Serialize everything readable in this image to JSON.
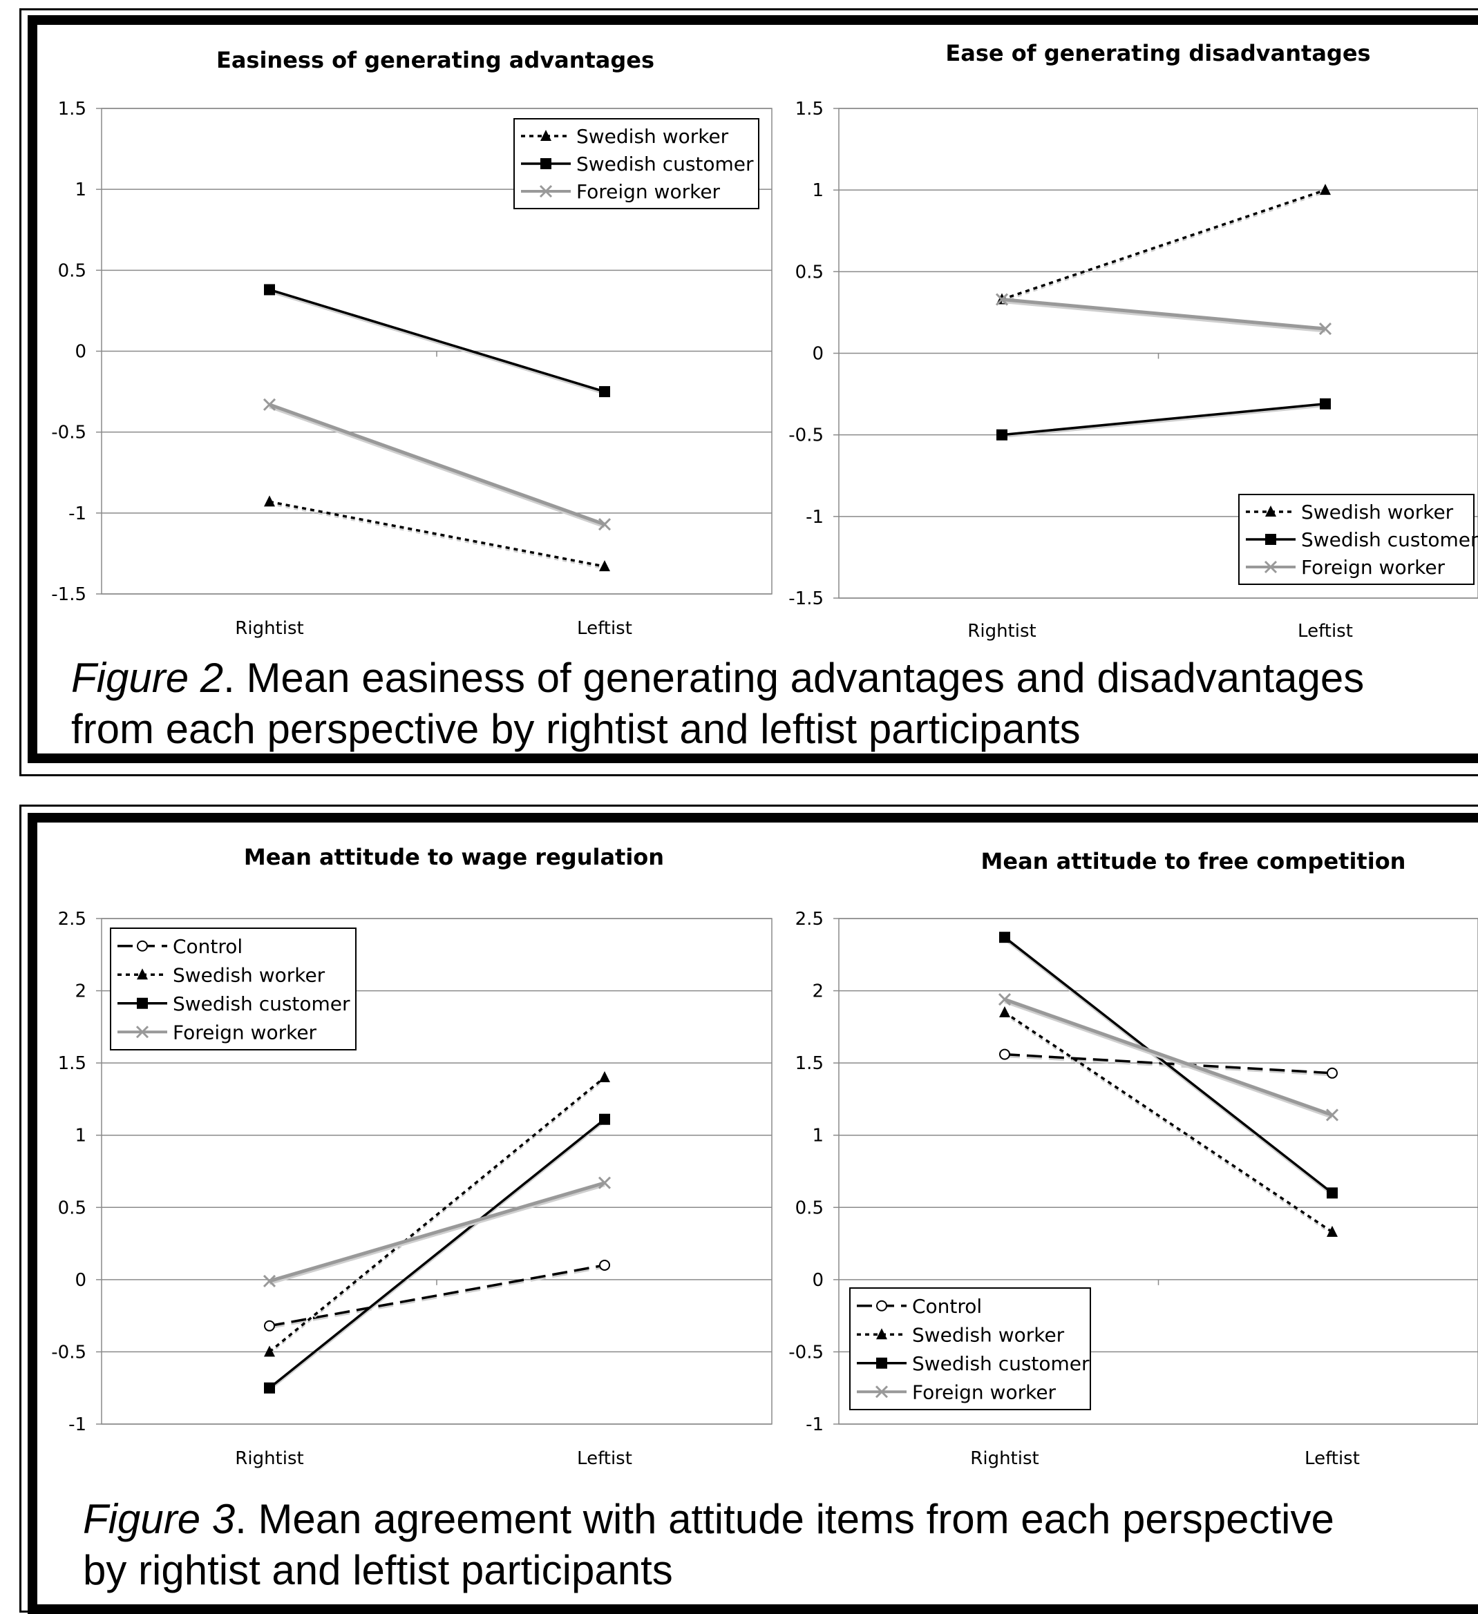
{
  "figures": [
    {
      "caption_label": "Figure 2",
      "caption_line1": ". Mean easiness of generating advantages and disadvantages",
      "caption_line2": "from each perspective by rightist and leftist participants"
    },
    {
      "caption_label": "Figure 3",
      "caption_line1": ". Mean agreement with attitude items from each perspective",
      "caption_line2": "by rightist and leftist participants"
    }
  ],
  "chart_data": [
    {
      "type": "line",
      "title": "Easiness of generating advantages",
      "categories": [
        "Rightist",
        "Leftist"
      ],
      "ylim": [
        -1.5,
        1.5
      ],
      "yticks": [
        "1.5",
        "1",
        "0.5",
        "0",
        "-0.5",
        "-1",
        "-1.5"
      ],
      "grid": true,
      "legend": "top-right",
      "series": [
        {
          "name": "Swedish worker",
          "values": [
            -0.93,
            -1.33
          ],
          "style": "dotted",
          "marker": "triangle",
          "color": "#000000"
        },
        {
          "name": "Swedish customer",
          "values": [
            0.38,
            -0.25
          ],
          "style": "solid",
          "marker": "square",
          "color": "#000000"
        },
        {
          "name": "Foreign worker",
          "values": [
            -0.33,
            -1.07
          ],
          "style": "solid",
          "marker": "x",
          "color": "#999999"
        }
      ]
    },
    {
      "type": "line",
      "title": "Ease of generating disadvantages",
      "categories": [
        "Rightist",
        "Leftist"
      ],
      "ylim": [
        -1.5,
        1.5
      ],
      "yticks": [
        "1.5",
        "1",
        "0.5",
        "0",
        "-0.5",
        "-1",
        "-1.5"
      ],
      "grid": true,
      "legend": "bottom-right",
      "series": [
        {
          "name": "Swedish worker",
          "values": [
            0.33,
            1.0
          ],
          "style": "dotted",
          "marker": "triangle",
          "color": "#000000"
        },
        {
          "name": "Swedish customer",
          "values": [
            -0.5,
            -0.31
          ],
          "style": "solid",
          "marker": "square",
          "color": "#000000"
        },
        {
          "name": "Foreign worker",
          "values": [
            0.33,
            0.15
          ],
          "style": "solid",
          "marker": "x",
          "color": "#999999"
        }
      ]
    },
    {
      "type": "line",
      "title": "Mean attitude to wage regulation",
      "categories": [
        "Rightist",
        "Leftist"
      ],
      "ylim": [
        -1,
        2.5
      ],
      "yticks": [
        "2.5",
        "2",
        "1.5",
        "1",
        "0.5",
        "0",
        "-0.5",
        "-1"
      ],
      "grid": true,
      "legend": "top-left",
      "series": [
        {
          "name": "Control",
          "values": [
            -0.32,
            0.1
          ],
          "style": "dashed",
          "marker": "circle",
          "color": "#000000"
        },
        {
          "name": "Swedish worker",
          "values": [
            -0.5,
            1.4
          ],
          "style": "dotted",
          "marker": "triangle",
          "color": "#000000"
        },
        {
          "name": "Swedish customer",
          "values": [
            -0.75,
            1.11
          ],
          "style": "solid",
          "marker": "square",
          "color": "#000000"
        },
        {
          "name": "Foreign worker",
          "values": [
            -0.01,
            0.67
          ],
          "style": "solid",
          "marker": "x",
          "color": "#999999"
        }
      ]
    },
    {
      "type": "line",
      "title": "Mean attitude to free competition",
      "categories": [
        "Rightist",
        "Leftist"
      ],
      "ylim": [
        -1,
        2.5
      ],
      "yticks": [
        "2.5",
        "2",
        "1.5",
        "1",
        "0.5",
        "0",
        "-0.5",
        "-1"
      ],
      "grid": true,
      "legend": "bottom-left",
      "series": [
        {
          "name": "Control",
          "values": [
            1.56,
            1.43
          ],
          "style": "dashed",
          "marker": "circle",
          "color": "#000000"
        },
        {
          "name": "Swedish worker",
          "values": [
            1.85,
            0.33
          ],
          "style": "dotted",
          "marker": "triangle",
          "color": "#000000"
        },
        {
          "name": "Swedish customer",
          "values": [
            2.37,
            0.6
          ],
          "style": "solid",
          "marker": "square",
          "color": "#000000"
        },
        {
          "name": "Foreign worker",
          "values": [
            1.94,
            1.14
          ],
          "style": "solid",
          "marker": "x",
          "color": "#999999"
        }
      ]
    }
  ]
}
